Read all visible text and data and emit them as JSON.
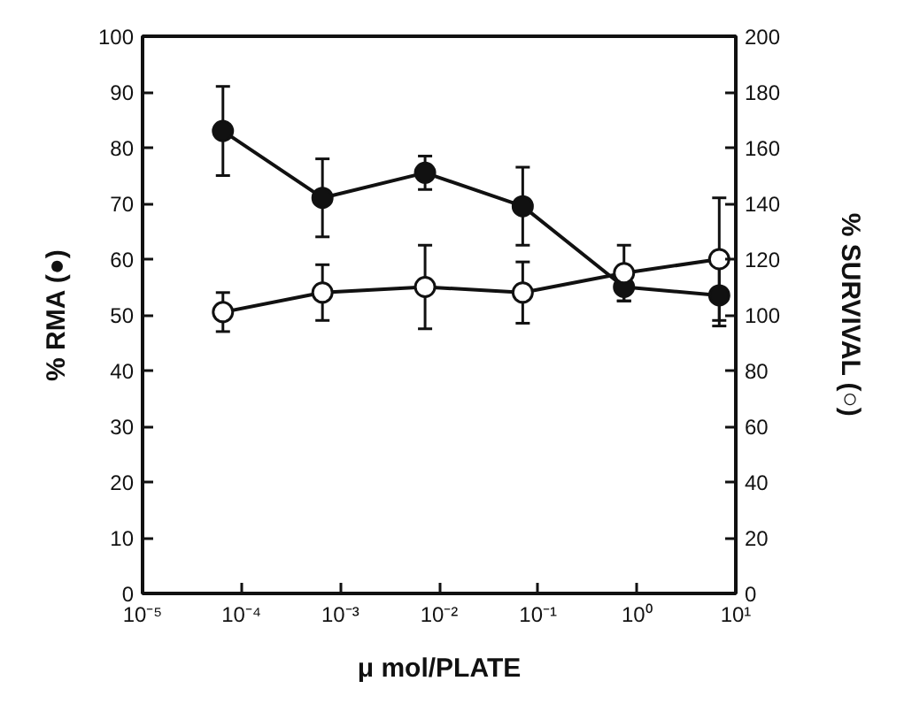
{
  "chart_data": {
    "type": "line",
    "xlabel": "μ mol/PLATE",
    "ylabel": "% RMA (●)",
    "y2label": "% SURVIVAL (○)",
    "log": "x",
    "grid": false,
    "marker": "circle",
    "line_style": "solid",
    "xlim": [
      1e-05,
      10
    ],
    "xticks": [
      {
        "value": 1e-05,
        "label": "10⁻⁵"
      },
      {
        "value": 0.0001,
        "label": "10⁻⁴"
      },
      {
        "value": 0.001,
        "label": "10⁻³"
      },
      {
        "value": 0.01,
        "label": "10⁻²"
      },
      {
        "value": 0.1,
        "label": "10⁻¹"
      },
      {
        "value": 1,
        "label": "10⁰"
      },
      {
        "value": 10,
        "label": "10¹"
      }
    ],
    "ylim": [
      0,
      100
    ],
    "yticks": [
      0,
      10,
      20,
      30,
      40,
      50,
      60,
      70,
      80,
      90,
      100
    ],
    "y2lim": [
      0,
      200
    ],
    "y2ticks": [
      0,
      20,
      40,
      60,
      80,
      100,
      120,
      140,
      160,
      180,
      200
    ],
    "x": [
      6.5e-05,
      0.00066,
      0.0072,
      0.07,
      0.74,
      6.8
    ],
    "series": [
      {
        "color": "#111111",
        "axis": "y",
        "values": [
          83,
          71,
          75.5,
          69.5,
          55,
          53.5
        ],
        "errors": [
          8,
          7,
          3,
          7,
          2.5,
          5.5
        ]
      },
      {
        "color": "#ffffff",
        "axis": "y2",
        "values": [
          101,
          108,
          110,
          108,
          115,
          120
        ],
        "errors": [
          7,
          10,
          15,
          11,
          10,
          22
        ]
      }
    ]
  }
}
